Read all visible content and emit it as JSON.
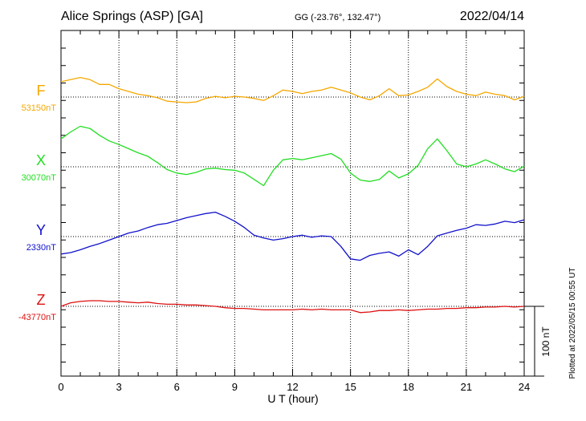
{
  "header": {
    "station": "Alice Springs (ASP)  [GA]",
    "coords": "GG (-23.76°, 132.47°)",
    "date": "2022/04/14"
  },
  "side_note": "Plotted at 2022/05/15 00:55 UT",
  "chart_data": {
    "type": "line",
    "xlabel": "U T (hour)",
    "xlim": [
      0,
      24
    ],
    "xticks": [
      "0",
      "3",
      "6",
      "9",
      "12",
      "15",
      "18",
      "21",
      "24"
    ],
    "scale_label": "100 nT",
    "scale_nT": 100,
    "series": [
      {
        "name": "F",
        "baseline_label": "53150nT",
        "baseline": 53150,
        "color": "#f5a800",
        "x": [
          0,
          0.5,
          1,
          1.5,
          2,
          2.5,
          3,
          3.5,
          4,
          4.5,
          5,
          5.5,
          6,
          6.5,
          7,
          7.5,
          8,
          8.5,
          9,
          9.5,
          10,
          10.5,
          11,
          11.5,
          12,
          12.5,
          13,
          13.5,
          14,
          14.5,
          15,
          15.5,
          16,
          16.5,
          17,
          17.5,
          18,
          18.5,
          19,
          19.5,
          20,
          20.5,
          21,
          21.5,
          22,
          22.5,
          23,
          23.5,
          24
        ],
        "y": [
          53172,
          53175,
          53178,
          53175,
          53168,
          53168,
          53162,
          53158,
          53154,
          53152,
          53149,
          53144,
          53143,
          53142,
          53143,
          53148,
          53151,
          53149,
          53151,
          53150,
          53148,
          53145,
          53152,
          53160,
          53158,
          53155,
          53158,
          53160,
          53164,
          53160,
          53156,
          53150,
          53146,
          53152,
          53162,
          53152,
          53153,
          53158,
          53164,
          53176,
          53165,
          53158,
          53154,
          53152,
          53157,
          53154,
          53152,
          53146,
          53151
        ]
      },
      {
        "name": "X",
        "baseline_label": "30070nT",
        "baseline": 30070,
        "color": "#22dd22",
        "x": [
          0,
          0.5,
          1,
          1.5,
          2,
          2.5,
          3,
          3.5,
          4,
          4.5,
          5,
          5.5,
          6,
          6.5,
          7,
          7.5,
          8,
          8.5,
          9,
          9.5,
          10,
          10.5,
          11,
          11.5,
          12,
          12.5,
          13,
          13.5,
          14,
          14.5,
          15,
          15.5,
          16,
          16.5,
          17,
          17.5,
          18,
          18.5,
          19,
          19.5,
          20,
          20.5,
          21,
          21.5,
          22,
          22.5,
          23,
          23.5,
          24
        ],
        "y": [
          30110,
          30120,
          30128,
          30125,
          30115,
          30107,
          30102,
          30096,
          30090,
          30085,
          30076,
          30066,
          30061,
          30059,
          30062,
          30067,
          30068,
          30066,
          30065,
          30061,
          30052,
          30043,
          30065,
          30080,
          30082,
          30080,
          30083,
          30086,
          30089,
          30081,
          30061,
          30051,
          30049,
          30052,
          30064,
          30054,
          30060,
          30072,
          30096,
          30110,
          30093,
          30074,
          30070,
          30074,
          30080,
          30074,
          30067,
          30063,
          30071
        ]
      },
      {
        "name": "Y",
        "baseline_label": "2330nT",
        "baseline": 2330,
        "color": "#1111cc",
        "x": [
          0,
          0.5,
          1,
          1.5,
          2,
          2.5,
          3,
          3.5,
          4,
          4.5,
          5,
          5.5,
          6,
          6.5,
          7,
          7.5,
          8,
          8.5,
          9,
          9.5,
          10,
          10.5,
          11,
          11.5,
          12,
          12.5,
          13,
          13.5,
          14,
          14.5,
          15,
          15.5,
          16,
          16.5,
          17,
          17.5,
          18,
          18.5,
          19,
          19.5,
          20,
          20.5,
          21,
          21.5,
          22,
          22.5,
          23,
          23.5,
          24
        ],
        "y": [
          2305,
          2307,
          2311,
          2316,
          2320,
          2325,
          2330,
          2335,
          2338,
          2343,
          2347,
          2349,
          2353,
          2357,
          2360,
          2363,
          2365,
          2359,
          2352,
          2343,
          2332,
          2328,
          2325,
          2327,
          2330,
          2332,
          2329,
          2331,
          2330,
          2316,
          2298,
          2296,
          2303,
          2306,
          2308,
          2302,
          2311,
          2304,
          2316,
          2331,
          2335,
          2339,
          2342,
          2347,
          2346,
          2348,
          2352,
          2350,
          2354
        ]
      },
      {
        "name": "Z",
        "baseline_label": "-43770nT",
        "baseline": -43770,
        "color": "#dd1111",
        "x": [
          0,
          0.5,
          1,
          1.5,
          2,
          2.5,
          3,
          3.5,
          4,
          4.5,
          5,
          5.5,
          6,
          6.5,
          7,
          7.5,
          8,
          8.5,
          9,
          9.5,
          10,
          10.5,
          11,
          11.5,
          12,
          12.5,
          13,
          13.5,
          14,
          14.5,
          15,
          15.5,
          16,
          16.5,
          17,
          17.5,
          18,
          18.5,
          19,
          19.5,
          20,
          20.5,
          21,
          21.5,
          22,
          22.5,
          23,
          23.5,
          24
        ],
        "y": [
          -43770,
          -43765,
          -43763,
          -43762,
          -43762,
          -43763,
          -43763,
          -43764,
          -43765,
          -43764,
          -43766,
          -43767,
          -43767,
          -43768,
          -43768,
          -43769,
          -43770,
          -43772,
          -43773,
          -43773,
          -43774,
          -43775,
          -43775,
          -43775,
          -43775,
          -43774,
          -43775,
          -43774,
          -43775,
          -43775,
          -43775,
          -43779,
          -43778,
          -43776,
          -43776,
          -43775,
          -43776,
          -43775,
          -43774,
          -43774,
          -43773,
          -43773,
          -43772,
          -43772,
          -43771,
          -43771,
          -43770,
          -43771,
          -43770
        ]
      }
    ]
  }
}
